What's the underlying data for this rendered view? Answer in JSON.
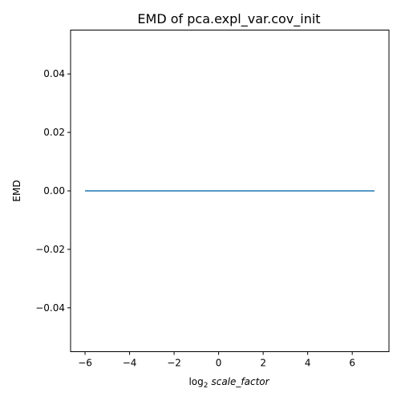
{
  "chart_data": {
    "type": "line",
    "title": "EMD of pca.expl_var.cov_init",
    "xlabel": {
      "prefix": "log",
      "subscript": "2",
      "variable": "scale_factor"
    },
    "ylabel": "EMD",
    "xlim": [
      -6.65,
      7.65
    ],
    "ylim": [
      -0.055,
      0.055
    ],
    "x_ticks": [
      -6,
      -4,
      -2,
      0,
      2,
      4,
      6
    ],
    "x_tick_labels": [
      "−6",
      "−4",
      "−2",
      "0",
      "2",
      "4",
      "6"
    ],
    "y_ticks": [
      -0.04,
      -0.02,
      0.0,
      0.02,
      0.04
    ],
    "y_tick_labels": [
      "−0.04",
      "−0.02",
      "0.00",
      "0.02",
      "0.04"
    ],
    "grid": false,
    "series": [
      {
        "color": "#1f77b4",
        "x": [
          -6,
          -5,
          -4,
          -3,
          -2,
          -1,
          0,
          1,
          2,
          3,
          4,
          5,
          6,
          7
        ],
        "y": [
          0,
          0,
          0,
          0,
          0,
          0,
          0,
          0,
          0,
          0,
          0,
          0,
          0,
          0
        ]
      }
    ]
  }
}
